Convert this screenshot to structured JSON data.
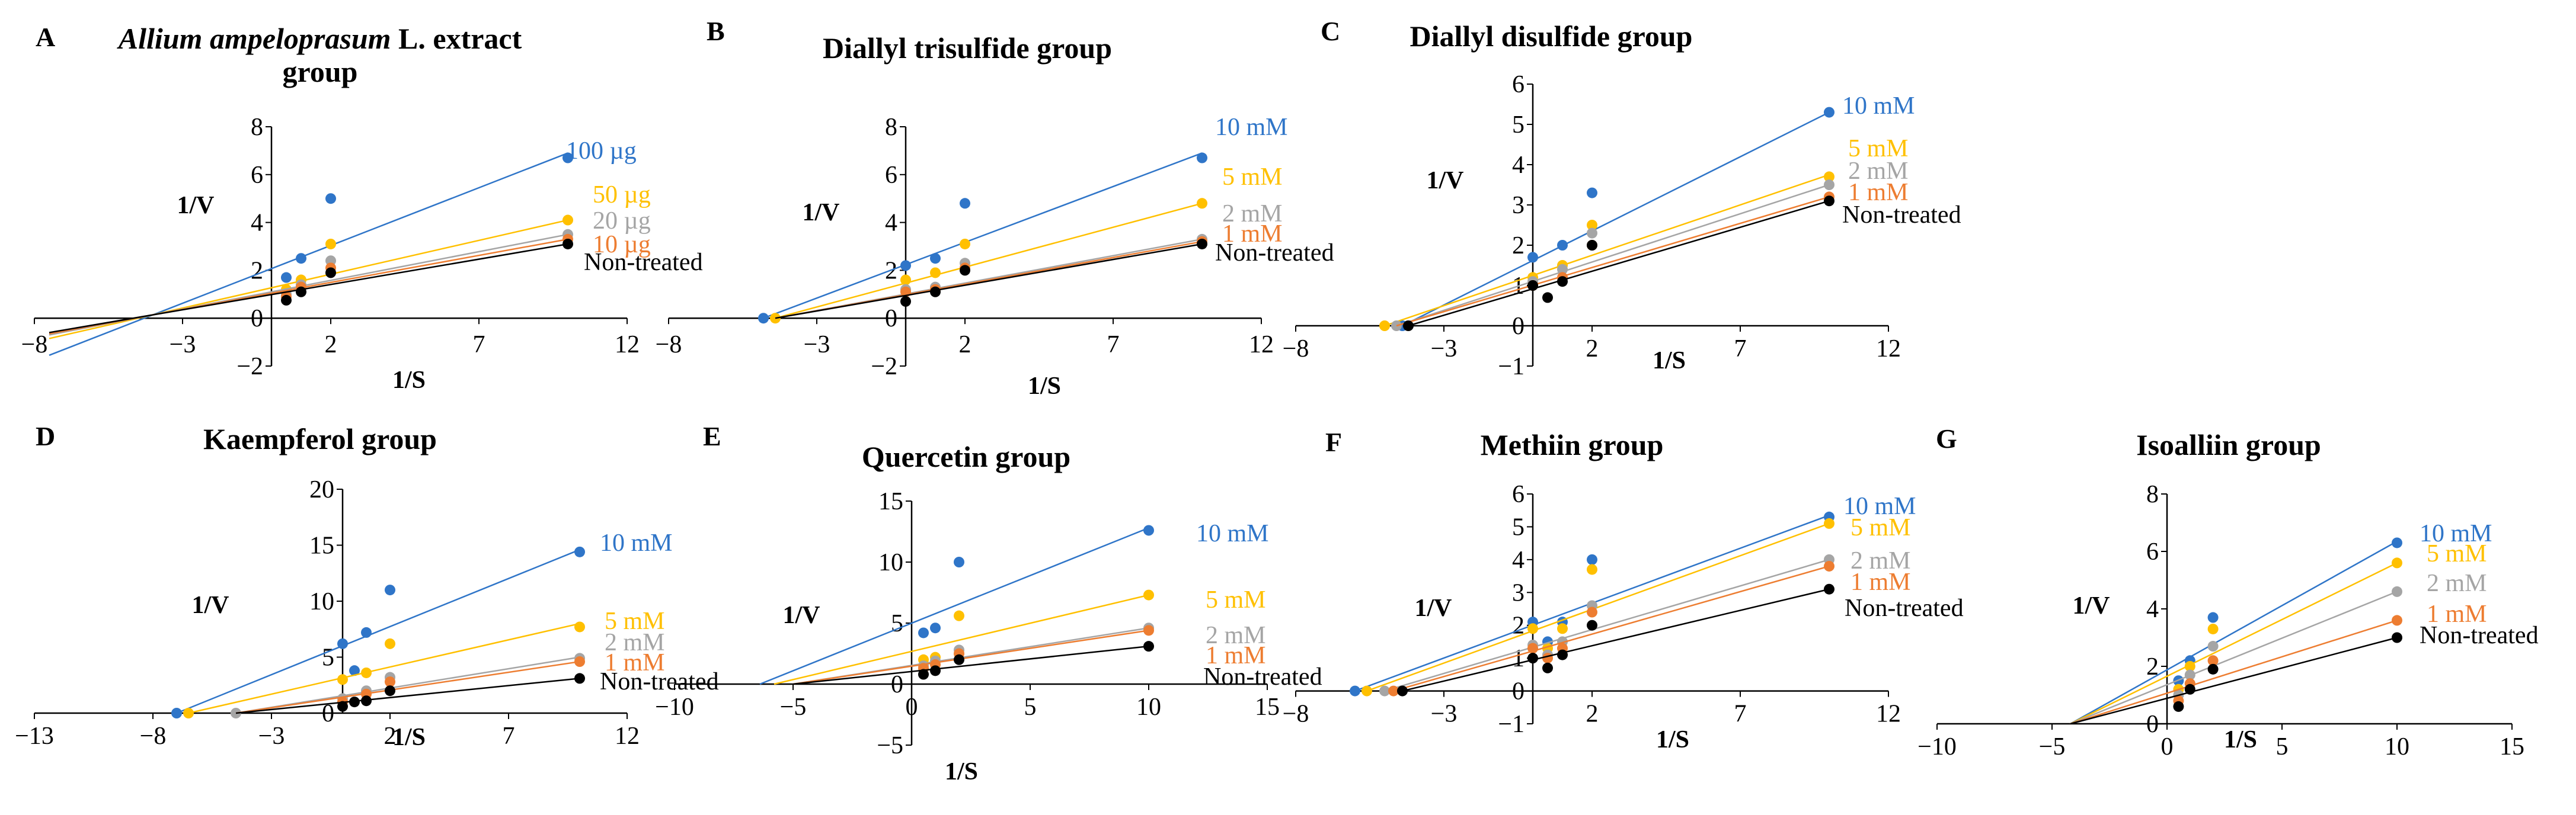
{
  "colors": {
    "blue": "#2f75c8",
    "yellow": "#ffc000",
    "gray": "#a5a5a5",
    "orange": "#ed7d31",
    "black": "#000000"
  },
  "chart_data": [
    {
      "panel": "A",
      "type": "scatter",
      "title": "Allium ampeloprasum L. extract group",
      "title_lines": [
        [
          "Allium ampeloprasum",
          " L. extract"
        ],
        [
          "group"
        ]
      ],
      "xlabel": "1/S",
      "ylabel": "1/V",
      "xlim": [
        -8,
        12
      ],
      "ylim": [
        -2,
        8
      ],
      "xticks": [
        -8,
        -3,
        2,
        7,
        12
      ],
      "yticks": [
        -2,
        0,
        2,
        4,
        6,
        8
      ],
      "series": [
        {
          "name": "100 µg",
          "color": "blue",
          "x": [
            0.5,
            1,
            2,
            10
          ],
          "y": [
            1.7,
            2.5,
            5.0,
            6.7
          ],
          "line": [
            [
              -7.5,
              -1.55
            ],
            [
              10,
              6.9
            ]
          ]
        },
        {
          "name": "50 µg",
          "color": "yellow",
          "x": [
            0.5,
            1,
            2,
            10
          ],
          "y": [
            1.2,
            1.6,
            3.1,
            4.1
          ],
          "line": [
            [
              -7.5,
              -0.85
            ],
            [
              10,
              4.1
            ]
          ]
        },
        {
          "name": "20 µg",
          "color": "gray",
          "x": [
            0.5,
            1,
            2,
            10
          ],
          "y": [
            1.0,
            1.4,
            2.4,
            3.5
          ],
          "line": [
            [
              -7.5,
              -0.7
            ],
            [
              10,
              3.5
            ]
          ]
        },
        {
          "name": "10 µg",
          "color": "orange",
          "x": [
            0.5,
            1,
            2,
            10
          ],
          "y": [
            0.9,
            1.3,
            2.1,
            3.3
          ],
          "line": [
            [
              -7.5,
              -0.65
            ],
            [
              10,
              3.3
            ]
          ]
        },
        {
          "name": "Non-treated",
          "color": "black",
          "x": [
            0.5,
            1,
            2,
            10
          ],
          "y": [
            0.75,
            1.1,
            1.9,
            3.1
          ],
          "line": [
            [
              -7.5,
              -0.6
            ],
            [
              10,
              3.1
            ]
          ]
        }
      ]
    },
    {
      "panel": "B",
      "type": "scatter",
      "title": "Diallyl trisulfide group",
      "title_lines": [
        [
          "Diallyl trisulfide group"
        ]
      ],
      "xlabel": "1/S",
      "ylabel": "1/V",
      "xlim": [
        -8,
        12
      ],
      "ylim": [
        -2,
        8
      ],
      "xticks": [
        -8,
        -3,
        2,
        7,
        12
      ],
      "yticks": [
        -2,
        0,
        2,
        4,
        6,
        8
      ],
      "series": [
        {
          "name": "10 mM",
          "color": "blue",
          "x": [
            -4.8,
            0,
            1,
            2,
            10
          ],
          "y": [
            0,
            2.2,
            2.5,
            4.8,
            6.7
          ],
          "line": [
            [
              -4.8,
              0
            ],
            [
              10,
              6.9
            ]
          ]
        },
        {
          "name": "5 mM",
          "color": "yellow",
          "x": [
            -4.4,
            0,
            1,
            2,
            10
          ],
          "y": [
            0,
            1.6,
            1.9,
            3.1,
            4.8
          ],
          "line": [
            [
              -4.4,
              0
            ],
            [
              10,
              4.8
            ]
          ]
        },
        {
          "name": "2 mM",
          "color": "gray",
          "x": [
            0,
            1,
            2,
            10
          ],
          "y": [
            1.2,
            1.3,
            2.3,
            3.3
          ],
          "line": [
            [
              -4.4,
              0
            ],
            [
              10,
              3.3
            ]
          ]
        },
        {
          "name": "1 mM",
          "color": "orange",
          "x": [
            0,
            1,
            2,
            10
          ],
          "y": [
            1.1,
            1.2,
            2.1,
            3.2
          ],
          "line": [
            [
              -4.4,
              0
            ],
            [
              10,
              3.2
            ]
          ]
        },
        {
          "name": "Non-treated",
          "color": "black",
          "x": [
            0,
            1,
            2,
            10
          ],
          "y": [
            0.7,
            1.1,
            2.0,
            3.1
          ],
          "line": [
            [
              -4.4,
              0
            ],
            [
              10,
              3.1
            ]
          ]
        }
      ]
    },
    {
      "panel": "C",
      "type": "scatter",
      "title": "Diallyl disulfide group",
      "title_lines": [
        [
          "Diallyl disulfide group"
        ]
      ],
      "xlabel": "1/S",
      "ylabel": "1/V",
      "xlim": [
        -8,
        12
      ],
      "ylim": [
        -1,
        6
      ],
      "xticks": [
        -8,
        -3,
        2,
        7,
        12
      ],
      "yticks": [
        -1,
        0,
        1,
        2,
        3,
        4,
        5,
        6
      ],
      "series": [
        {
          "name": "10 mM",
          "color": "blue",
          "x": [
            -4.4,
            0,
            1,
            2,
            10
          ],
          "y": [
            0,
            1.7,
            2.0,
            3.3,
            5.3
          ],
          "line": [
            [
              -4.4,
              0
            ],
            [
              10,
              5.3
            ]
          ]
        },
        {
          "name": "5 mM",
          "color": "yellow",
          "x": [
            -5,
            0,
            1,
            2,
            10
          ],
          "y": [
            0,
            1.2,
            1.5,
            2.5,
            3.7
          ],
          "line": [
            [
              -5,
              0
            ],
            [
              10,
              3.75
            ]
          ]
        },
        {
          "name": "2 mM",
          "color": "gray",
          "x": [
            -4.6,
            0,
            1,
            2,
            10
          ],
          "y": [
            0,
            1.1,
            1.4,
            2.3,
            3.5
          ],
          "line": [
            [
              -4.6,
              0
            ],
            [
              10,
              3.5
            ]
          ]
        },
        {
          "name": "1 mM",
          "color": "orange",
          "x": [
            0,
            1,
            2,
            10
          ],
          "y": [
            1.0,
            1.2,
            2.0,
            3.2
          ],
          "line": [
            [
              -4.6,
              0
            ],
            [
              10,
              3.2
            ]
          ]
        },
        {
          "name": "Non-treated",
          "color": "black",
          "x": [
            -4.2,
            0,
            0.5,
            1,
            2,
            10
          ],
          "y": [
            0,
            1.0,
            0.7,
            1.1,
            2.0,
            3.1
          ],
          "line": [
            [
              -4.2,
              0
            ],
            [
              10,
              3.1
            ]
          ]
        }
      ]
    },
    {
      "panel": "D",
      "type": "scatter",
      "title": "Kaempferol group",
      "title_lines": [
        [
          "Kaempferol  group"
        ]
      ],
      "xlabel": "1/S",
      "ylabel": "1/V",
      "xlim": [
        -13,
        12
      ],
      "ylim": [
        0,
        20
      ],
      "xticks": [
        -13,
        -8,
        -3,
        2,
        7,
        12
      ],
      "yticks": [
        0,
        5,
        10,
        15,
        20
      ],
      "series": [
        {
          "name": "10 mM",
          "color": "blue",
          "x": [
            -7,
            0,
            0.5,
            1,
            2,
            10
          ],
          "y": [
            0,
            6.2,
            3.8,
            7.2,
            11.0,
            14.4
          ],
          "line": [
            [
              -7,
              0
            ],
            [
              10,
              14.6
            ]
          ]
        },
        {
          "name": "5 mM",
          "color": "yellow",
          "x": [
            -6.5,
            0,
            1,
            2,
            10
          ],
          "y": [
            0,
            3.0,
            3.6,
            6.2,
            7.7
          ],
          "line": [
            [
              -6.5,
              0
            ],
            [
              10,
              8.0
            ]
          ]
        },
        {
          "name": "2 mM",
          "color": "gray",
          "x": [
            -4.5,
            0,
            1,
            2,
            10
          ],
          "y": [
            0,
            1.3,
            2.0,
            3.2,
            4.9
          ],
          "line": [
            [
              -4.5,
              0
            ],
            [
              10,
              5.0
            ]
          ]
        },
        {
          "name": "1 mM",
          "color": "orange",
          "x": [
            0,
            1,
            2,
            10
          ],
          "y": [
            1.0,
            1.7,
            2.8,
            4.6
          ],
          "line": [
            [
              -4.5,
              0
            ],
            [
              10,
              4.6
            ]
          ]
        },
        {
          "name": "Non-treated",
          "color": "black",
          "x": [
            0,
            0.5,
            1,
            2,
            10
          ],
          "y": [
            0.6,
            1.0,
            1.1,
            2.0,
            3.1
          ],
          "line": [
            [
              -4.5,
              0
            ],
            [
              10,
              3.1
            ]
          ]
        }
      ]
    },
    {
      "panel": "E",
      "type": "scatter",
      "title": "Quercetin group",
      "title_lines": [
        [
          "Quercetin group"
        ]
      ],
      "xlabel": "1/S",
      "ylabel": "1/V",
      "xlim": [
        -10,
        15
      ],
      "ylim": [
        -5,
        15
      ],
      "xticks": [
        -10,
        -5,
        0,
        5,
        10,
        15
      ],
      "yticks": [
        -5,
        0,
        5,
        10,
        15
      ],
      "series": [
        {
          "name": "10 mM",
          "color": "blue",
          "x": [
            0.5,
            1,
            2,
            10
          ],
          "y": [
            4.2,
            4.6,
            10.0,
            12.6
          ],
          "line": [
            [
              -6.4,
              0
            ],
            [
              10,
              12.8
            ]
          ]
        },
        {
          "name": "5 mM",
          "color": "yellow",
          "x": [
            0.5,
            1,
            2,
            10
          ],
          "y": [
            2.0,
            2.2,
            5.6,
            7.3
          ],
          "line": [
            [
              -5.8,
              0
            ],
            [
              10,
              7.3
            ]
          ]
        },
        {
          "name": "2 mM",
          "color": "gray",
          "x": [
            0.5,
            1,
            2,
            10
          ],
          "y": [
            1.5,
            1.9,
            2.8,
            4.6
          ],
          "line": [
            [
              -5,
              0
            ],
            [
              10,
              4.6
            ]
          ]
        },
        {
          "name": "1 mM",
          "color": "orange",
          "x": [
            0.5,
            1,
            2,
            10
          ],
          "y": [
            1.3,
            1.6,
            2.5,
            4.4
          ],
          "line": [
            [
              -5,
              0
            ],
            [
              10,
              4.4
            ]
          ]
        },
        {
          "name": "Non-treated",
          "color": "black",
          "x": [
            0.5,
            1,
            2,
            10
          ],
          "y": [
            0.8,
            1.1,
            2.0,
            3.1
          ],
          "line": [
            [
              -5,
              0
            ],
            [
              10,
              3.1
            ]
          ]
        }
      ]
    },
    {
      "panel": "F",
      "type": "scatter",
      "title": "Methiin group",
      "title_lines": [
        [
          "Methiin group"
        ]
      ],
      "xlabel": "1/S",
      "ylabel": "1/V",
      "xlim": [
        -8,
        12
      ],
      "ylim": [
        -1,
        6
      ],
      "xticks": [
        -8,
        -3,
        2,
        7,
        12
      ],
      "yticks": [
        -1,
        0,
        1,
        2,
        3,
        4,
        5,
        6
      ],
      "series": [
        {
          "name": "10 mM",
          "color": "blue",
          "x": [
            -6,
            0,
            0.5,
            1,
            2,
            10
          ],
          "y": [
            0,
            2.1,
            1.5,
            2.1,
            4.0,
            5.3
          ],
          "line": [
            [
              -6,
              0
            ],
            [
              10,
              5.35
            ]
          ]
        },
        {
          "name": "5 mM",
          "color": "yellow",
          "x": [
            -5.6,
            0,
            0.5,
            1,
            2,
            10
          ],
          "y": [
            0,
            1.9,
            1.3,
            1.9,
            3.7,
            5.1
          ],
          "line": [
            [
              -5.6,
              0
            ],
            [
              10,
              5.1
            ]
          ]
        },
        {
          "name": "2 mM",
          "color": "gray",
          "x": [
            -5,
            0,
            0.5,
            1,
            2,
            10
          ],
          "y": [
            0,
            1.4,
            1.1,
            1.5,
            2.6,
            4.0
          ],
          "line": [
            [
              -5,
              0
            ],
            [
              10,
              4.0
            ]
          ]
        },
        {
          "name": "1 mM",
          "color": "orange",
          "x": [
            -4.7,
            0,
            0.5,
            1,
            2,
            10
          ],
          "y": [
            0,
            1.3,
            1.0,
            1.3,
            2.4,
            3.8
          ],
          "line": [
            [
              -4.7,
              0
            ],
            [
              10,
              3.8
            ]
          ]
        },
        {
          "name": "Non-treated",
          "color": "black",
          "x": [
            -4.4,
            0,
            0.5,
            1,
            2,
            10
          ],
          "y": [
            0,
            1.0,
            0.7,
            1.1,
            2.0,
            3.1
          ],
          "line": [
            [
              -4.4,
              0
            ],
            [
              10,
              3.1
            ]
          ]
        }
      ]
    },
    {
      "panel": "G",
      "type": "scatter",
      "title": "Isoalliin group",
      "title_lines": [
        [
          "Isoalliin group"
        ]
      ],
      "xlabel": "1/S",
      "ylabel": "1/V",
      "xlim": [
        -10,
        15
      ],
      "ylim": [
        0,
        8
      ],
      "xticks": [
        -10,
        -5,
        0,
        5,
        10,
        15
      ],
      "yticks": [
        0,
        2,
        4,
        6,
        8
      ],
      "series": [
        {
          "name": "10 mM",
          "color": "blue",
          "x": [
            0.5,
            1,
            2,
            10
          ],
          "y": [
            1.5,
            2.2,
            3.7,
            6.3
          ],
          "line": [
            [
              -4.2,
              0
            ],
            [
              10,
              6.35
            ]
          ]
        },
        {
          "name": "5 mM",
          "color": "yellow",
          "x": [
            0.5,
            1,
            2,
            10
          ],
          "y": [
            1.2,
            2.0,
            3.3,
            5.6
          ],
          "line": [
            [
              -4.2,
              0
            ],
            [
              10,
              5.6
            ]
          ]
        },
        {
          "name": "2 mM",
          "color": "gray",
          "x": [
            0.5,
            1,
            2,
            10
          ],
          "y": [
            1.0,
            1.7,
            2.7,
            4.6
          ],
          "line": [
            [
              -4.2,
              0
            ],
            [
              10,
              4.6
            ]
          ]
        },
        {
          "name": "1 mM",
          "color": "orange",
          "x": [
            0.5,
            1,
            2,
            10
          ],
          "y": [
            0.8,
            1.4,
            2.2,
            3.6
          ],
          "line": [
            [
              -4.2,
              0
            ],
            [
              10,
              3.6
            ]
          ]
        },
        {
          "name": "Non-treated",
          "color": "black",
          "x": [
            0.5,
            1,
            2,
            10
          ],
          "y": [
            0.6,
            1.2,
            1.9,
            3.0
          ],
          "line": [
            [
              -4.2,
              0
            ],
            [
              10,
              3.0
            ]
          ]
        }
      ]
    }
  ]
}
